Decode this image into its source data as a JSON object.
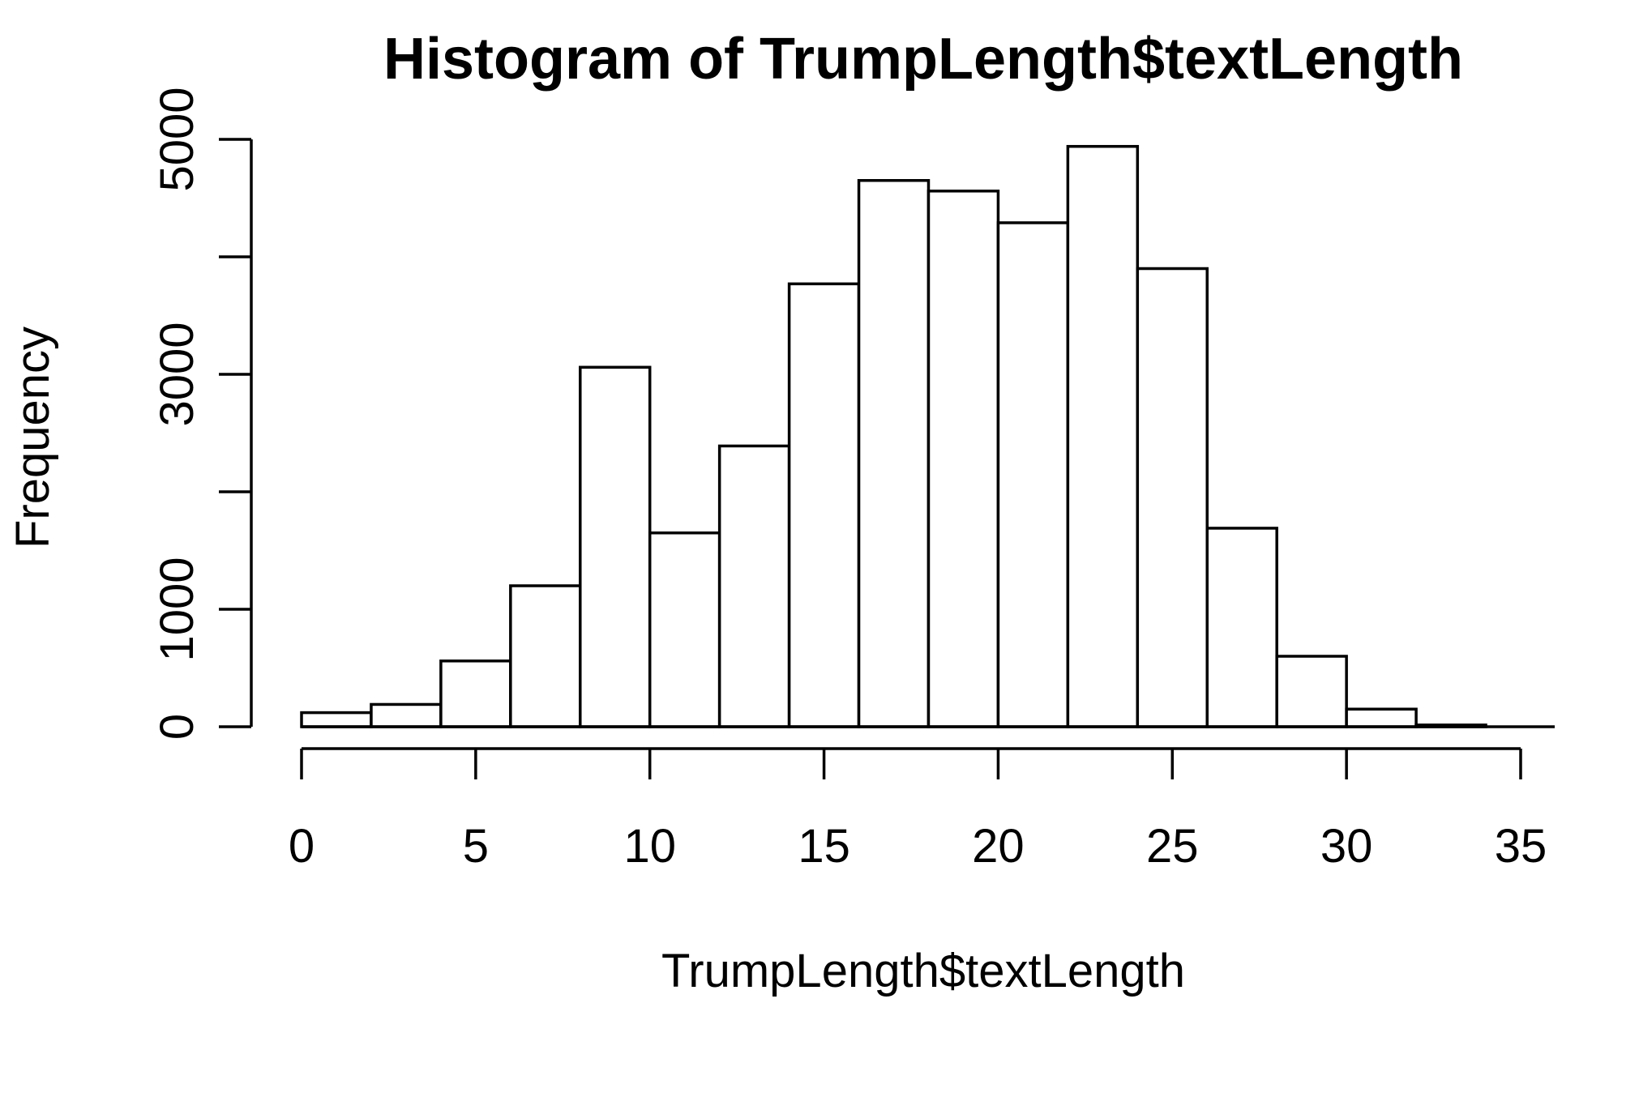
{
  "chart_data": {
    "type": "bar",
    "title": "Histogram of TrumpLength$textLength",
    "xlabel": "TrumpLength$textLength",
    "ylabel": "Frequency",
    "bin_edges": [
      0,
      2,
      4,
      6,
      8,
      10,
      12,
      14,
      16,
      18,
      20,
      22,
      24,
      26,
      28,
      30,
      32,
      34
    ],
    "values": [
      120,
      190,
      560,
      1200,
      3060,
      1650,
      2390,
      3770,
      4650,
      4560,
      4290,
      4940,
      3900,
      1690,
      600,
      150,
      15
    ],
    "xlim": [
      0,
      35
    ],
    "ylim": [
      0,
      5000
    ],
    "x_ticks": [
      "0",
      "5",
      "10",
      "15",
      "20",
      "25",
      "30",
      "35"
    ],
    "y_ticks": [
      "0",
      "1000",
      "3000",
      "5000"
    ],
    "grid": false,
    "legend": "none"
  }
}
